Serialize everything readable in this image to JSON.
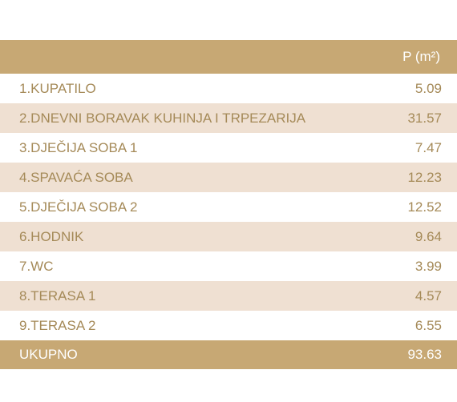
{
  "table": {
    "header": {
      "area_label": "P (m²)"
    },
    "rows": [
      {
        "name": "1.KUPATILO",
        "value": "5.09"
      },
      {
        "name": "2.DNEVNI BORAVAK KUHINJA I TRPEZARIJA",
        "value": "31.57"
      },
      {
        "name": "3.DJEČIJA SOBA 1",
        "value": "7.47"
      },
      {
        "name": "4.SPAVAĆA SOBA",
        "value": "12.23"
      },
      {
        "name": "5.DJEČIJA SOBA 2",
        "value": "12.52"
      },
      {
        "name": "6.HODNIK",
        "value": "9.64"
      },
      {
        "name": "7.WC",
        "value": "3.99"
      },
      {
        "name": "8.TERASA 1",
        "value": "4.57"
      },
      {
        "name": "9.TERASA 2",
        "value": "6.55"
      }
    ],
    "total": {
      "name": "UKUPNO",
      "value": "93.63"
    }
  },
  "colors": {
    "header_bg": "#c7a874",
    "stripe_bg": "#efe0d2",
    "text": "#a58a58"
  }
}
